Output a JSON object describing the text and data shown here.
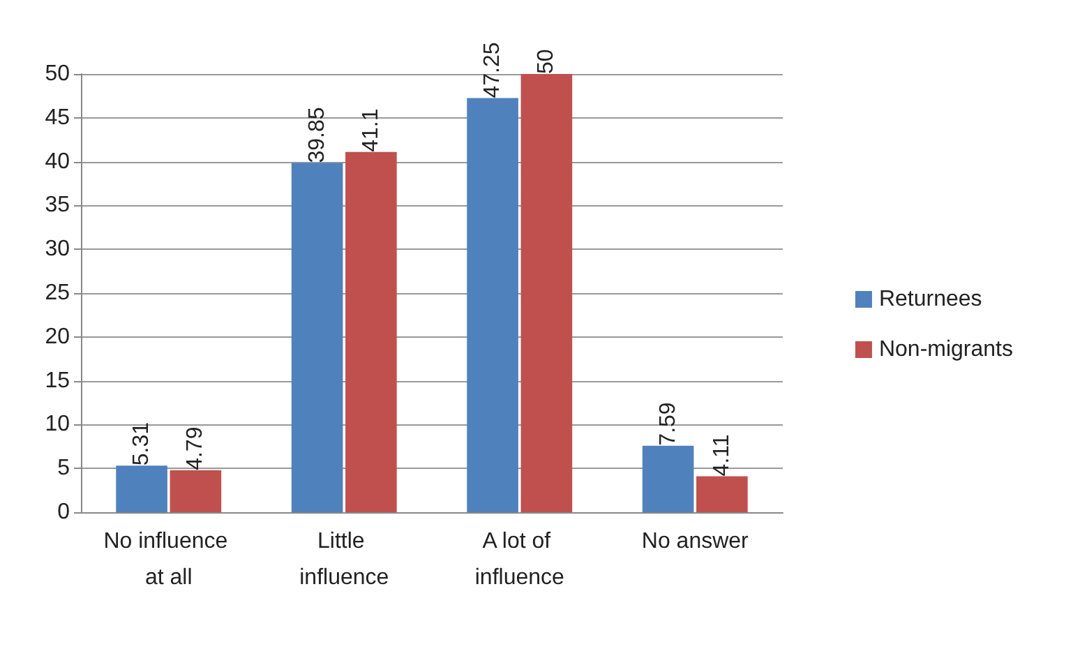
{
  "chart_data": {
    "type": "bar",
    "categories": [
      "No influence at all",
      "Little influence",
      "A lot of influence",
      "No answer"
    ],
    "series": [
      {
        "name": "Returnees",
        "color": "#4f81bd",
        "values": [
          5.31,
          39.85,
          47.25,
          7.59
        ]
      },
      {
        "name": "Non-migrants",
        "color": "#c0504d",
        "values": [
          4.79,
          41.1,
          50,
          4.11
        ]
      }
    ],
    "ylim": [
      0,
      50
    ],
    "yticks": [
      0,
      5,
      10,
      15,
      20,
      25,
      30,
      35,
      40,
      45,
      50
    ],
    "grid": "y",
    "legend": "right",
    "data_labels": true
  }
}
